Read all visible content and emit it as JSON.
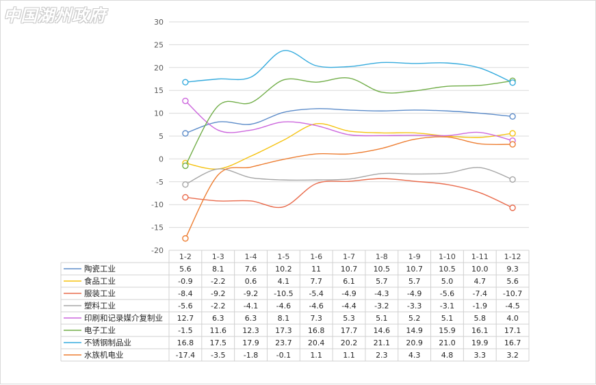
{
  "watermark": "中国湖州政府",
  "chart_data": {
    "type": "line",
    "title": "",
    "xlabel": "",
    "ylabel": "",
    "ylim": [
      -20,
      30
    ],
    "yticks": [
      -20,
      -15,
      -10,
      -5,
      0,
      5,
      10,
      15,
      20,
      25,
      30
    ],
    "grid": true,
    "legend": "data-table-left",
    "categories": [
      "1-2",
      "1-3",
      "1-4",
      "1-5",
      "1-6",
      "1-7",
      "1-8",
      "1-9",
      "1-10",
      "1-11",
      "1-12"
    ],
    "series": [
      {
        "name": "陶瓷工业",
        "color": "#5b8bc9",
        "values": [
          "5.6",
          "8.1",
          "7.6",
          "10.2",
          "11",
          "10.7",
          "10.5",
          "10.7",
          "10.5",
          "10.0",
          "9.3"
        ]
      },
      {
        "name": "食品工业",
        "color": "#f5c20f",
        "values": [
          "-0.9",
          "-2.2",
          "0.6",
          "4.1",
          "7.7",
          "6.1",
          "5.7",
          "5.7",
          "5.0",
          "4.7",
          "5.6"
        ]
      },
      {
        "name": "服装工业",
        "color": "#e96a4b",
        "values": [
          "-8.4",
          "-9.2",
          "-9.2",
          "-10.5",
          "-5.4",
          "-4.9",
          "-4.3",
          "-4.9",
          "-5.6",
          "-7.4",
          "-10.7"
        ]
      },
      {
        "name": "塑料工业",
        "color": "#a5a5a5",
        "values": [
          "-5.6",
          "-2.2",
          "-4.1",
          "-4.6",
          "-4.6",
          "-4.4",
          "-3.2",
          "-3.3",
          "-3.1",
          "-1.9",
          "-4.5"
        ]
      },
      {
        "name": "印刷和记录媒介复制业",
        "color": "#cc66dd",
        "values": [
          "12.7",
          "6.3",
          "6.3",
          "8.1",
          "7.3",
          "5.3",
          "5.1",
          "5.2",
          "5.1",
          "5.8",
          "4.0"
        ]
      },
      {
        "name": "电子工业",
        "color": "#70ad47",
        "values": [
          "-1.5",
          "11.6",
          "12.3",
          "17.3",
          "16.8",
          "17.7",
          "14.6",
          "14.9",
          "15.9",
          "16.1",
          "17.1"
        ]
      },
      {
        "name": "不锈钢制品业",
        "color": "#33aadd",
        "values": [
          "16.8",
          "17.5",
          "17.9",
          "23.7",
          "20.4",
          "20.2",
          "21.1",
          "20.9",
          "21.0",
          "19.9",
          "16.7"
        ]
      },
      {
        "name": "水族机电业",
        "color": "#ed7d31",
        "values": [
          "-17.4",
          "-3.5",
          "-1.8",
          "-0.1",
          "1.1",
          "1.1",
          "2.3",
          "4.3",
          "4.8",
          "3.3",
          "3.2"
        ]
      }
    ]
  }
}
